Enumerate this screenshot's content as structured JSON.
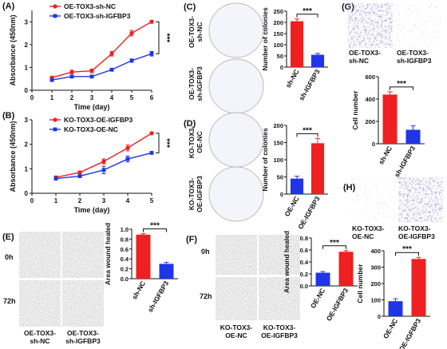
{
  "figure": {
    "background": "#ffffff",
    "red": "#ee2020",
    "blue": "#1f35e6",
    "stain": "#4a4a9a"
  },
  "chart_data": [
    {
      "panel": "(A)",
      "type": "line",
      "xlabel": "Time (day)",
      "ylabel": "Absorbance (450nm)",
      "xlim": [
        0,
        6
      ],
      "ylim": [
        0,
        3.5
      ],
      "xticks": [
        "0",
        "1",
        "2",
        "3",
        "4",
        "5",
        "6"
      ],
      "yticks": [
        "0",
        "1",
        "2",
        "3"
      ],
      "x": [
        1,
        2,
        3,
        4,
        5,
        6
      ],
      "series": [
        {
          "name": "OE-TOX3-sh-NC",
          "color": "#ee2020",
          "values": [
            0.55,
            0.8,
            0.85,
            1.6,
            2.5,
            3.0
          ],
          "err": [
            0.05,
            0.08,
            0.08,
            0.1,
            0.12,
            0.06
          ]
        },
        {
          "name": "OE-TOX3-sh-IGFBP3",
          "color": "#1f35e6",
          "values": [
            0.45,
            0.6,
            0.6,
            0.9,
            1.3,
            1.6
          ],
          "err": [
            0.04,
            0.05,
            0.05,
            0.06,
            0.07,
            0.1
          ]
        }
      ],
      "significance": "***"
    },
    {
      "panel": "(B)",
      "type": "line",
      "xlabel": "Time (day)",
      "ylabel": "Absorbance (450nm)",
      "xlim": [
        0,
        5
      ],
      "ylim": [
        0,
        3
      ],
      "xticks": [
        "0",
        "1",
        "2",
        "3",
        "4",
        "5"
      ],
      "yticks": [
        "0",
        "1",
        "2",
        "3"
      ],
      "x": [
        1,
        2,
        3,
        4,
        5
      ],
      "series": [
        {
          "name": "KO-TOX3-OE-IGFBP3",
          "color": "#ee2020",
          "values": [
            0.65,
            0.85,
            1.3,
            1.85,
            2.45
          ],
          "err": [
            0.05,
            0.05,
            0.1,
            0.12,
            0.04
          ]
        },
        {
          "name": "KO-TOX3-OE-NC",
          "color": "#1f35e6",
          "values": [
            0.6,
            0.7,
            0.95,
            1.4,
            1.65
          ],
          "err": [
            0.04,
            0.06,
            0.15,
            0.12,
            0.04
          ]
        }
      ],
      "significance": "***"
    },
    {
      "panel": "(C)",
      "type": "bar",
      "ylabel": "Number of colonies",
      "ylim": [
        0,
        250
      ],
      "yticks": [
        "0",
        "50",
        "100",
        "150",
        "200",
        "250"
      ],
      "categories": [
        "sh-NC",
        "sh-IGFBP3"
      ],
      "values": [
        205,
        55
      ],
      "err": [
        10,
        6
      ],
      "colors": [
        "#ee2020",
        "#1f35e6"
      ],
      "significance": "***",
      "image_labels": [
        "OE-TOX3-sh-NC",
        "OE-TOX3-sh-IGFBP3"
      ]
    },
    {
      "panel": "(D)",
      "type": "bar",
      "ylabel": "Number of colonies",
      "ylim": [
        0,
        200
      ],
      "yticks": [
        "0",
        "50",
        "100",
        "150",
        "200"
      ],
      "categories": [
        "OE-NC",
        "OE-IGFBP3"
      ],
      "values": [
        45,
        148
      ],
      "err": [
        7,
        14
      ],
      "colors": [
        "#1f35e6",
        "#ee2020"
      ],
      "significance": "***",
      "image_labels": [
        "KO-TOX3-OE-NC",
        "KO-TOX3-OE-IGFBP3"
      ]
    },
    {
      "panel": "(E)",
      "type": "bar",
      "ylabel": "Area wound healed",
      "ylim": [
        0,
        1.0
      ],
      "yticks": [
        "0.0",
        "0.2",
        "0.4",
        "0.6",
        "0.8",
        "1.0"
      ],
      "categories": [
        "sh-NC",
        "sh-IGFBP3"
      ],
      "values": [
        0.89,
        0.3
      ],
      "err": [
        0.02,
        0.03
      ],
      "colors": [
        "#ee2020",
        "#1f35e6"
      ],
      "significance": "***",
      "row_labels": [
        "0h",
        "72h"
      ],
      "image_labels": [
        "OE-TOX3-sh-NC",
        "OE-TOX3-sh-IGFBP3"
      ]
    },
    {
      "panel": "(F)",
      "type": "bar",
      "ylabel": "Area wound healed",
      "ylim": [
        0,
        0.8
      ],
      "yticks": [
        "0.0",
        "0.2",
        "0.4",
        "0.6",
        "0.8"
      ],
      "categories": [
        "OE-NC",
        "OE-IGFBP3"
      ],
      "values": [
        0.22,
        0.57
      ],
      "err": [
        0.02,
        0.02
      ],
      "colors": [
        "#1f35e6",
        "#ee2020"
      ],
      "significance": "***",
      "row_labels": [
        "0h",
        "72h"
      ],
      "image_labels": [
        "KO-TOX3-OE-NC",
        "KO-TOX3-OE-IGFBP3"
      ]
    },
    {
      "panel": "(G)",
      "type": "bar",
      "ylabel": "Cell number",
      "ylim": [
        0,
        600
      ],
      "yticks": [
        "0",
        "200",
        "400",
        "600"
      ],
      "categories": [
        "sh-NC",
        "sh-IGFBP3"
      ],
      "values": [
        440,
        125
      ],
      "err": [
        25,
        35
      ],
      "colors": [
        "#ee2020",
        "#1f35e6"
      ],
      "significance": "***",
      "image_labels": [
        "OE-TOX3-sh-NC",
        "OE-TOX3-sh-IGFBP3"
      ]
    },
    {
      "panel": "(H)",
      "type": "bar",
      "ylabel": "Cell number",
      "ylim": [
        0,
        400
      ],
      "yticks": [
        "0",
        "100",
        "200",
        "300",
        "400"
      ],
      "categories": [
        "OE-NC",
        "OE-IGFBP3"
      ],
      "values": [
        92,
        350
      ],
      "err": [
        15,
        10
      ],
      "colors": [
        "#1f35e6",
        "#ee2020"
      ],
      "significance": "***",
      "image_labels": [
        "KO-TOX3-OE-NC",
        "KO-TOX3-OE-IGFBP3"
      ]
    }
  ]
}
